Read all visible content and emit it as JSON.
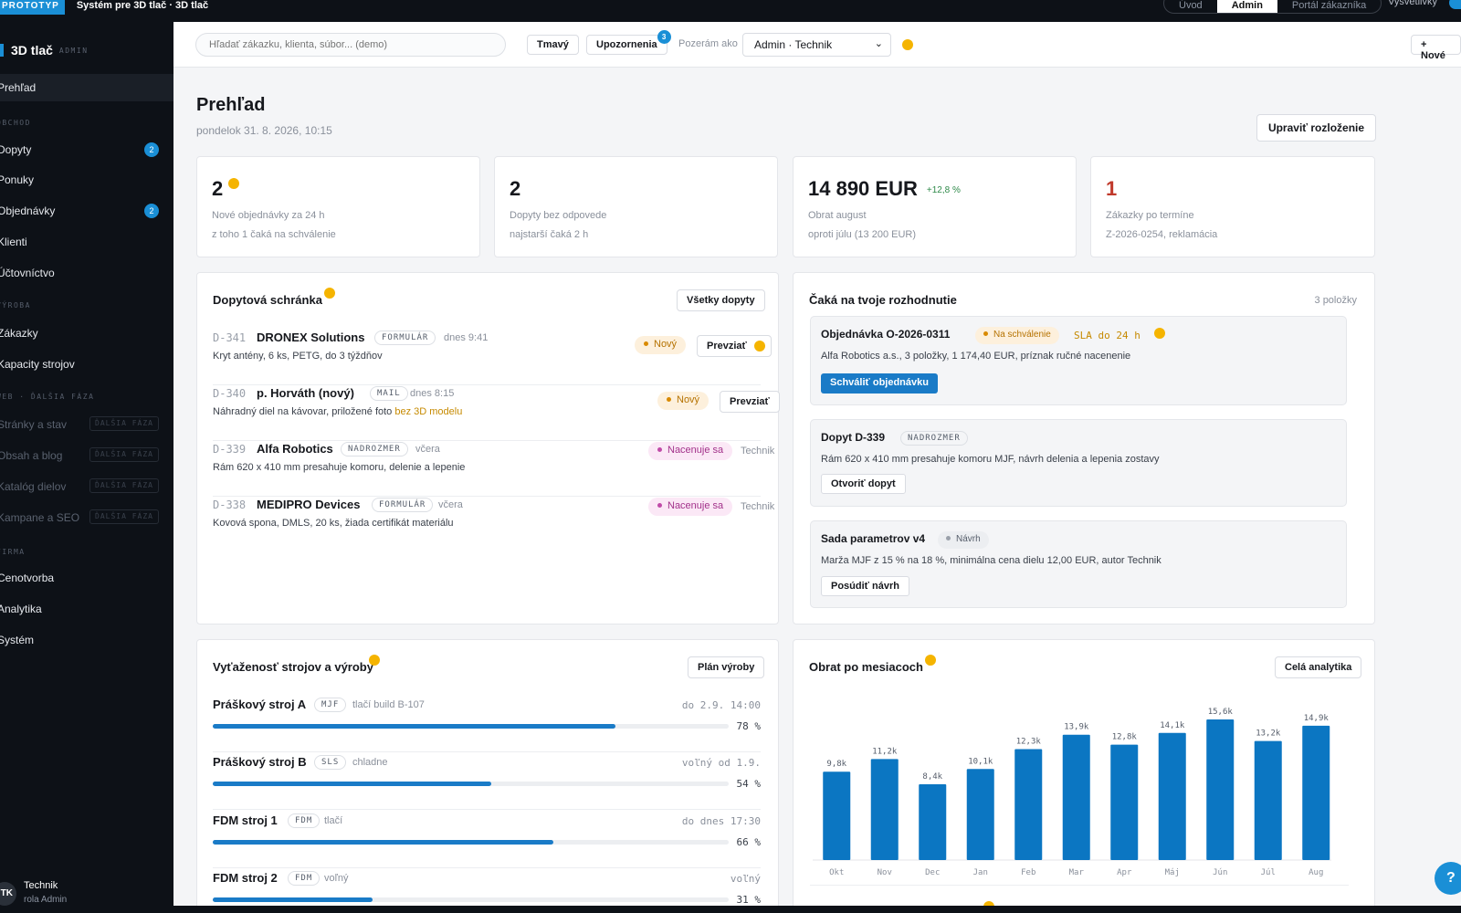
{
  "topbar": {
    "badge": "PROTOTYP",
    "title": "Systém pre 3D tlač · 3D tlač",
    "nav": [
      "Úvod",
      "Admin",
      "Portál zákazníka"
    ],
    "active_nav": "Admin",
    "explain_label": "Vysvetlivky"
  },
  "sidebar": {
    "brand": "3D tlač",
    "brand_sub": "ADMIN",
    "active": "Prehľad",
    "overview": "Prehľad",
    "sections": {
      "sales": "OBCHOD",
      "production": "VÝROBA",
      "web": "WEB · ĎALŠIA FÁZA",
      "company": "FIRMA"
    },
    "sales_items": [
      {
        "label": "Dopyty",
        "count": "2"
      },
      {
        "label": "Ponuky",
        "count": ""
      },
      {
        "label": "Objednávky",
        "count": "2"
      },
      {
        "label": "Klienti",
        "count": ""
      },
      {
        "label": "Účtovníctvo",
        "count": ""
      }
    ],
    "production_items": [
      "Zákazky",
      "Kapacity strojov"
    ],
    "web_items": [
      "Stránky a stav",
      "Obsah a blog",
      "Katalóg dielov",
      "Kampane a SEO"
    ],
    "phase_tag": "ĎALŠIA FÁZA",
    "company_items": [
      "Cenotvorba",
      "Analytika",
      "Systém"
    ],
    "user": {
      "initials": "TK",
      "name": "Technik",
      "role": "rola Admin"
    }
  },
  "header": {
    "search_placeholder": "Hľadať zákazku, klienta, súbor... (demo)",
    "theme_button": "Tmavý",
    "notifications_button": "Upozornenia",
    "notifications_count": "3",
    "viewing_label": "Pozerám ako",
    "role_value": "Admin · Technik",
    "new_button": "+ Nové"
  },
  "page": {
    "title": "Prehľad",
    "date": "pondelok 31. 8. 2026, 10:15",
    "layout_button": "Upraviť rozloženie"
  },
  "kpis": [
    {
      "value": "2",
      "label": "Nové objednávky za 24 h",
      "sub": "z toho 1 čaká na schválenie",
      "trend": ""
    },
    {
      "value": "2",
      "label": "Dopyty bez odpovede",
      "sub": "najstarší čaká 2 h",
      "trend": ""
    },
    {
      "value": "14 890 EUR",
      "label": "Obrat august",
      "sub": "oproti júlu (13 200 EUR)",
      "trend": "+12,8 %"
    },
    {
      "value": "1",
      "label": "Zákazky po termíne",
      "sub": "Z-2026-0254, reklamácia",
      "trend": ""
    }
  ],
  "inbox": {
    "title": "Dopytová schránka",
    "all_button": "Všetky dopyty",
    "take_label": "Prevziať",
    "items": [
      {
        "id": "D-341",
        "name": "DRONEX Solutions",
        "source": "FORMULÁR",
        "when": "dnes 9:41",
        "desc": "Kryt antény, 6 ks, PETG, do 3 týždňov",
        "desc_hl": "",
        "status": "Nový",
        "assignee": ""
      },
      {
        "id": "D-340",
        "name": "p. Horváth (nový)",
        "source": "MAIL",
        "when": "dnes 8:15",
        "desc": "Náhradný diel na kávovar, priložené foto ",
        "desc_hl": "bez 3D modelu",
        "status": "Nový",
        "assignee": ""
      },
      {
        "id": "D-339",
        "name": "Alfa Robotics",
        "source": "NADROZMER",
        "when": "včera",
        "desc": "Rám 620 x 410 mm presahuje komoru, delenie a lepenie",
        "desc_hl": "",
        "status": "Nacenuje sa",
        "assignee": "Technik"
      },
      {
        "id": "D-338",
        "name": "MEDIPRO Devices",
        "source": "FORMULÁR",
        "when": "včera",
        "desc": "Kovová spona, DMLS, 20 ks, žiada certifikát materiálu",
        "desc_hl": "",
        "status": "Nacenuje sa",
        "assignee": "Technik"
      }
    ]
  },
  "decisions": {
    "title": "Čaká na tvoje rozhodnutie",
    "count": "3 položky",
    "items": [
      {
        "title": "Objednávka O-2026-0311",
        "pill": "Na schválenie",
        "sla": "SLA do 24 h",
        "desc": "Alfa Robotics a.s., 3 položky, 1 174,40 EUR, príznak ručné nacenenie",
        "action": "Schváliť objednávku"
      },
      {
        "title": "Dopyt D-339",
        "tag": "NADROZMER",
        "desc": "Rám 620 x 410 mm presahuje komoru MJF, návrh delenia a lepenia zostavy",
        "action": "Otvoriť dopyt"
      },
      {
        "title": "Sada parametrov v4",
        "pill": "Návrh",
        "desc": "Marža MJF z 15 % na 18 %, minimálna cena dielu 12,00 EUR, autor Technik",
        "action": "Posúdiť návrh"
      }
    ]
  },
  "machines": {
    "title": "Vyťaženosť strojov a výroby",
    "plan_button": "Plán výroby",
    "items": [
      {
        "name": "Práškový stroj A",
        "tech": "MJF",
        "state": "tlačí build B-107",
        "until": "do 2.9. 14:00",
        "percent": 78,
        "percent_label": "78 %"
      },
      {
        "name": "Práškový stroj B",
        "tech": "SLS",
        "state": "chladne",
        "until": "voľný od 1.9.",
        "percent": 54,
        "percent_label": "54 %"
      },
      {
        "name": "FDM stroj 1",
        "tech": "FDM",
        "state": "tlačí",
        "until": "do dnes 17:30",
        "percent": 66,
        "percent_label": "66 %"
      },
      {
        "name": "FDM stroj 2",
        "tech": "FDM",
        "state": "voľný",
        "until": "voľný",
        "percent": 31,
        "percent_label": "31 %"
      }
    ]
  },
  "revenue": {
    "title": "Obrat po mesiacoch",
    "analytics_button": "Celá analytika"
  },
  "chart_data": {
    "type": "bar",
    "categories": [
      "Okt",
      "Nov",
      "Dec",
      "Jan",
      "Feb",
      "Mar",
      "Apr",
      "Máj",
      "Jún",
      "Júl",
      "Aug"
    ],
    "values": [
      9.8,
      11.2,
      8.4,
      10.1,
      12.3,
      13.9,
      12.8,
      14.1,
      15.6,
      13.2,
      14.9
    ],
    "labels": [
      "9,8k",
      "11,2k",
      "8,4k",
      "10,1k",
      "12,3k",
      "13,9k",
      "12,8k",
      "14,1k",
      "15,6k",
      "13,2k",
      "14,9k"
    ],
    "ylim": [
      0,
      16
    ],
    "color": "#0b76c2",
    "grid": false
  },
  "colors": {
    "accent": "#1a8fd6",
    "attention": "#f5b400",
    "danger": "#c0392b"
  }
}
